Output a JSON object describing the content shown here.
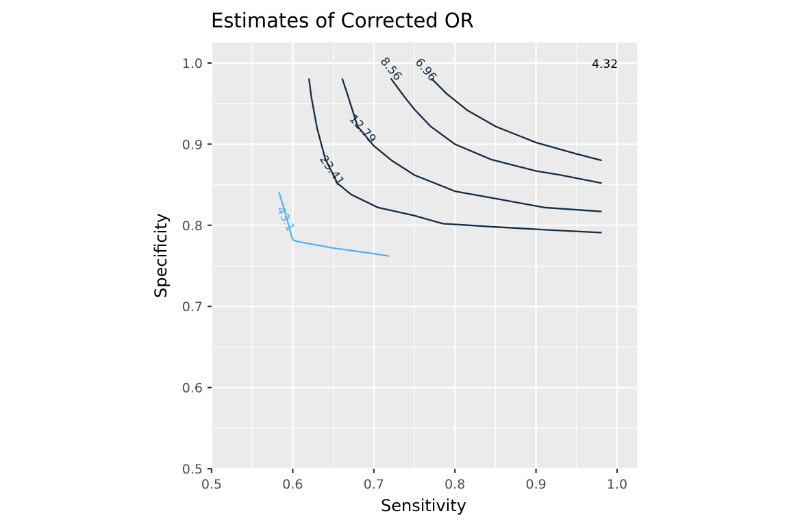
{
  "chart_data": {
    "type": "line",
    "title": "Estimates of Corrected OR",
    "xlabel": "Sensitivity",
    "ylabel": "Specificity",
    "xlim": [
      0.5,
      1.0
    ],
    "ylim": [
      0.5,
      1.0
    ],
    "xticks": [
      "0.5",
      "0.6",
      "0.7",
      "0.8",
      "0.9",
      "1.0"
    ],
    "yticks": [
      "0.5",
      "0.6",
      "0.7",
      "0.8",
      "0.9",
      "1.0"
    ],
    "grid": true,
    "background_color": "#ebebeb",
    "series": [
      {
        "name": "43.1",
        "color": "#56b1f7",
        "points": [
          [
            0.583,
            0.841
          ],
          [
            0.59,
            0.818
          ],
          [
            0.595,
            0.8
          ],
          [
            0.6,
            0.782
          ],
          [
            0.606,
            0.78
          ],
          [
            0.65,
            0.772
          ],
          [
            0.7,
            0.765
          ],
          [
            0.719,
            0.762
          ]
        ]
      },
      {
        "name": "23.41",
        "color": "#132b43",
        "points": [
          [
            0.62,
            0.981
          ],
          [
            0.623,
            0.958
          ],
          [
            0.63,
            0.92
          ],
          [
            0.64,
            0.882
          ],
          [
            0.655,
            0.852
          ],
          [
            0.672,
            0.838
          ],
          [
            0.705,
            0.822
          ],
          [
            0.75,
            0.812
          ],
          [
            0.785,
            0.802
          ],
          [
            0.85,
            0.798
          ],
          [
            0.92,
            0.794
          ],
          [
            0.981,
            0.791
          ]
        ]
      },
      {
        "name": "12.79",
        "color": "#132b43",
        "points": [
          [
            0.661,
            0.981
          ],
          [
            0.667,
            0.963
          ],
          [
            0.68,
            0.922
          ],
          [
            0.7,
            0.898
          ],
          [
            0.722,
            0.88
          ],
          [
            0.75,
            0.862
          ],
          [
            0.8,
            0.842
          ],
          [
            0.85,
            0.833
          ],
          [
            0.91,
            0.822
          ],
          [
            0.981,
            0.817
          ]
        ]
      },
      {
        "name": "8.56",
        "color": "#132b43",
        "points": [
          [
            0.721,
            0.981
          ],
          [
            0.738,
            0.958
          ],
          [
            0.75,
            0.943
          ],
          [
            0.77,
            0.922
          ],
          [
            0.8,
            0.9
          ],
          [
            0.845,
            0.881
          ],
          [
            0.9,
            0.867
          ],
          [
            0.93,
            0.862
          ],
          [
            0.981,
            0.852
          ]
        ]
      },
      {
        "name": "6.96",
        "color": "#132b43",
        "points": [
          [
            0.771,
            0.981
          ],
          [
            0.79,
            0.962
          ],
          [
            0.815,
            0.942
          ],
          [
            0.85,
            0.922
          ],
          [
            0.9,
            0.902
          ],
          [
            0.95,
            0.888
          ],
          [
            0.981,
            0.88
          ]
        ]
      }
    ],
    "annotations": [
      {
        "text": "4.32",
        "x": 0.985,
        "y": 0.9985,
        "angle": 0,
        "color": "#000000"
      },
      {
        "text": "6.96",
        "x": 0.764,
        "y": 0.9915,
        "angle": 50,
        "color": "#132b43"
      },
      {
        "text": "8.56",
        "x": 0.721,
        "y": 0.9925,
        "angle": 50,
        "color": "#132b43"
      },
      {
        "text": "12.79",
        "x": 0.686,
        "y": 0.9185,
        "angle": 48,
        "color": "#132b43"
      },
      {
        "text": "23.41",
        "x": 0.648,
        "y": 0.8675,
        "angle": 55,
        "color": "#132b43"
      },
      {
        "text": "43.1",
        "x": 0.591,
        "y": 0.8075,
        "angle": 63,
        "color": "#56b1f7"
      }
    ]
  }
}
